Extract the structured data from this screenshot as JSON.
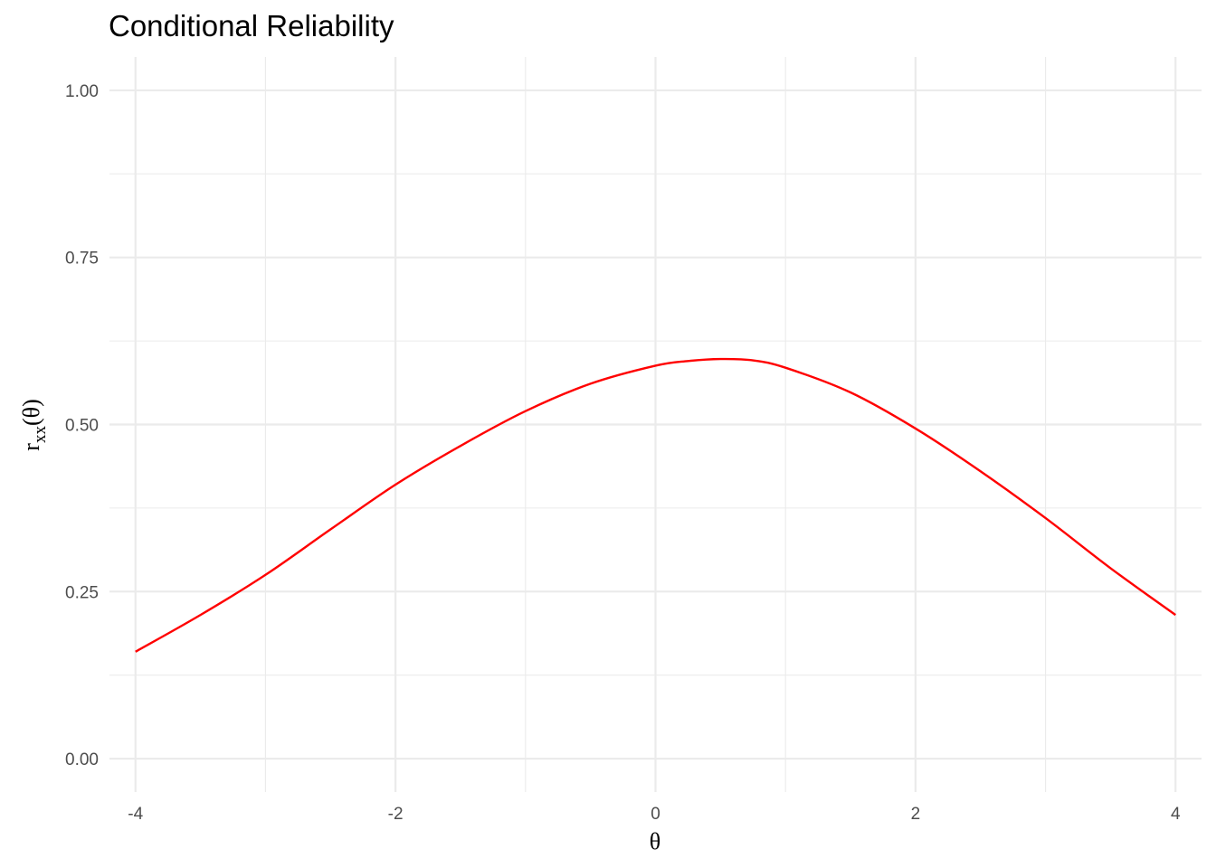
{
  "chart_data": {
    "type": "line",
    "title": "Conditional Reliability",
    "xlabel": "θ",
    "ylabel": {
      "main": "r",
      "subscript": "xx",
      "suffix": "(θ)"
    },
    "xlim": [
      -4.2,
      4.2
    ],
    "ylim": [
      -0.05,
      1.05
    ],
    "x_ticks": [
      -4,
      -2,
      0,
      2,
      4
    ],
    "x_tick_labels": [
      "-4",
      "-2",
      "0",
      "2",
      "4"
    ],
    "y_ticks": [
      0,
      0.25,
      0.5,
      0.75,
      1
    ],
    "y_tick_labels": [
      "0.00",
      "0.25",
      "0.50",
      "0.75",
      "1.00"
    ],
    "grid": true,
    "legend": "none",
    "series": [
      {
        "color": "#ff0000",
        "x": [
          -4,
          -3.5,
          -3,
          -2.5,
          -2,
          -1.5,
          -1,
          -0.5,
          0,
          0.25,
          0.5,
          0.75,
          1,
          1.5,
          2,
          2.5,
          3,
          3.5,
          4
        ],
        "y": [
          0.16,
          0.215,
          0.275,
          0.343,
          0.41,
          0.468,
          0.52,
          0.561,
          0.588,
          0.595,
          0.598,
          0.596,
          0.585,
          0.548,
          0.494,
          0.43,
          0.36,
          0.285,
          0.215
        ]
      }
    ]
  }
}
